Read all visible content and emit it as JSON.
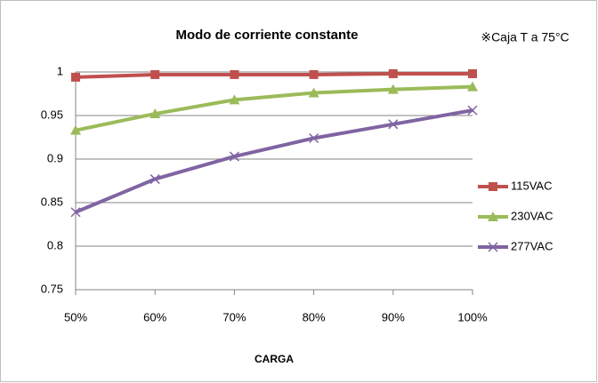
{
  "chart_data": {
    "type": "line",
    "title": "Modo de corriente constante",
    "annotation": "※Caja T a 75°C",
    "x_label": "CARGA",
    "categories": [
      "50%",
      "60%",
      "70%",
      "80%",
      "90%",
      "100%"
    ],
    "series": [
      {
        "name": "115VAC",
        "color": "#c0504d",
        "marker": "square",
        "values": [
          0.994,
          0.997,
          0.997,
          0.997,
          0.998,
          0.998
        ]
      },
      {
        "name": "230VAC",
        "color": "#9bbb59",
        "marker": "triangle",
        "values": [
          0.933,
          0.952,
          0.968,
          0.976,
          0.98,
          0.983
        ]
      },
      {
        "name": "277VAC",
        "color": "#8064a2",
        "marker": "x",
        "values": [
          0.839,
          0.877,
          0.903,
          0.924,
          0.94,
          0.956
        ]
      }
    ],
    "ylim": [
      0.75,
      1
    ],
    "yticks": [
      0.75,
      0.8,
      0.85,
      0.9,
      0.95,
      1
    ],
    "grid": true,
    "legend": "right"
  }
}
